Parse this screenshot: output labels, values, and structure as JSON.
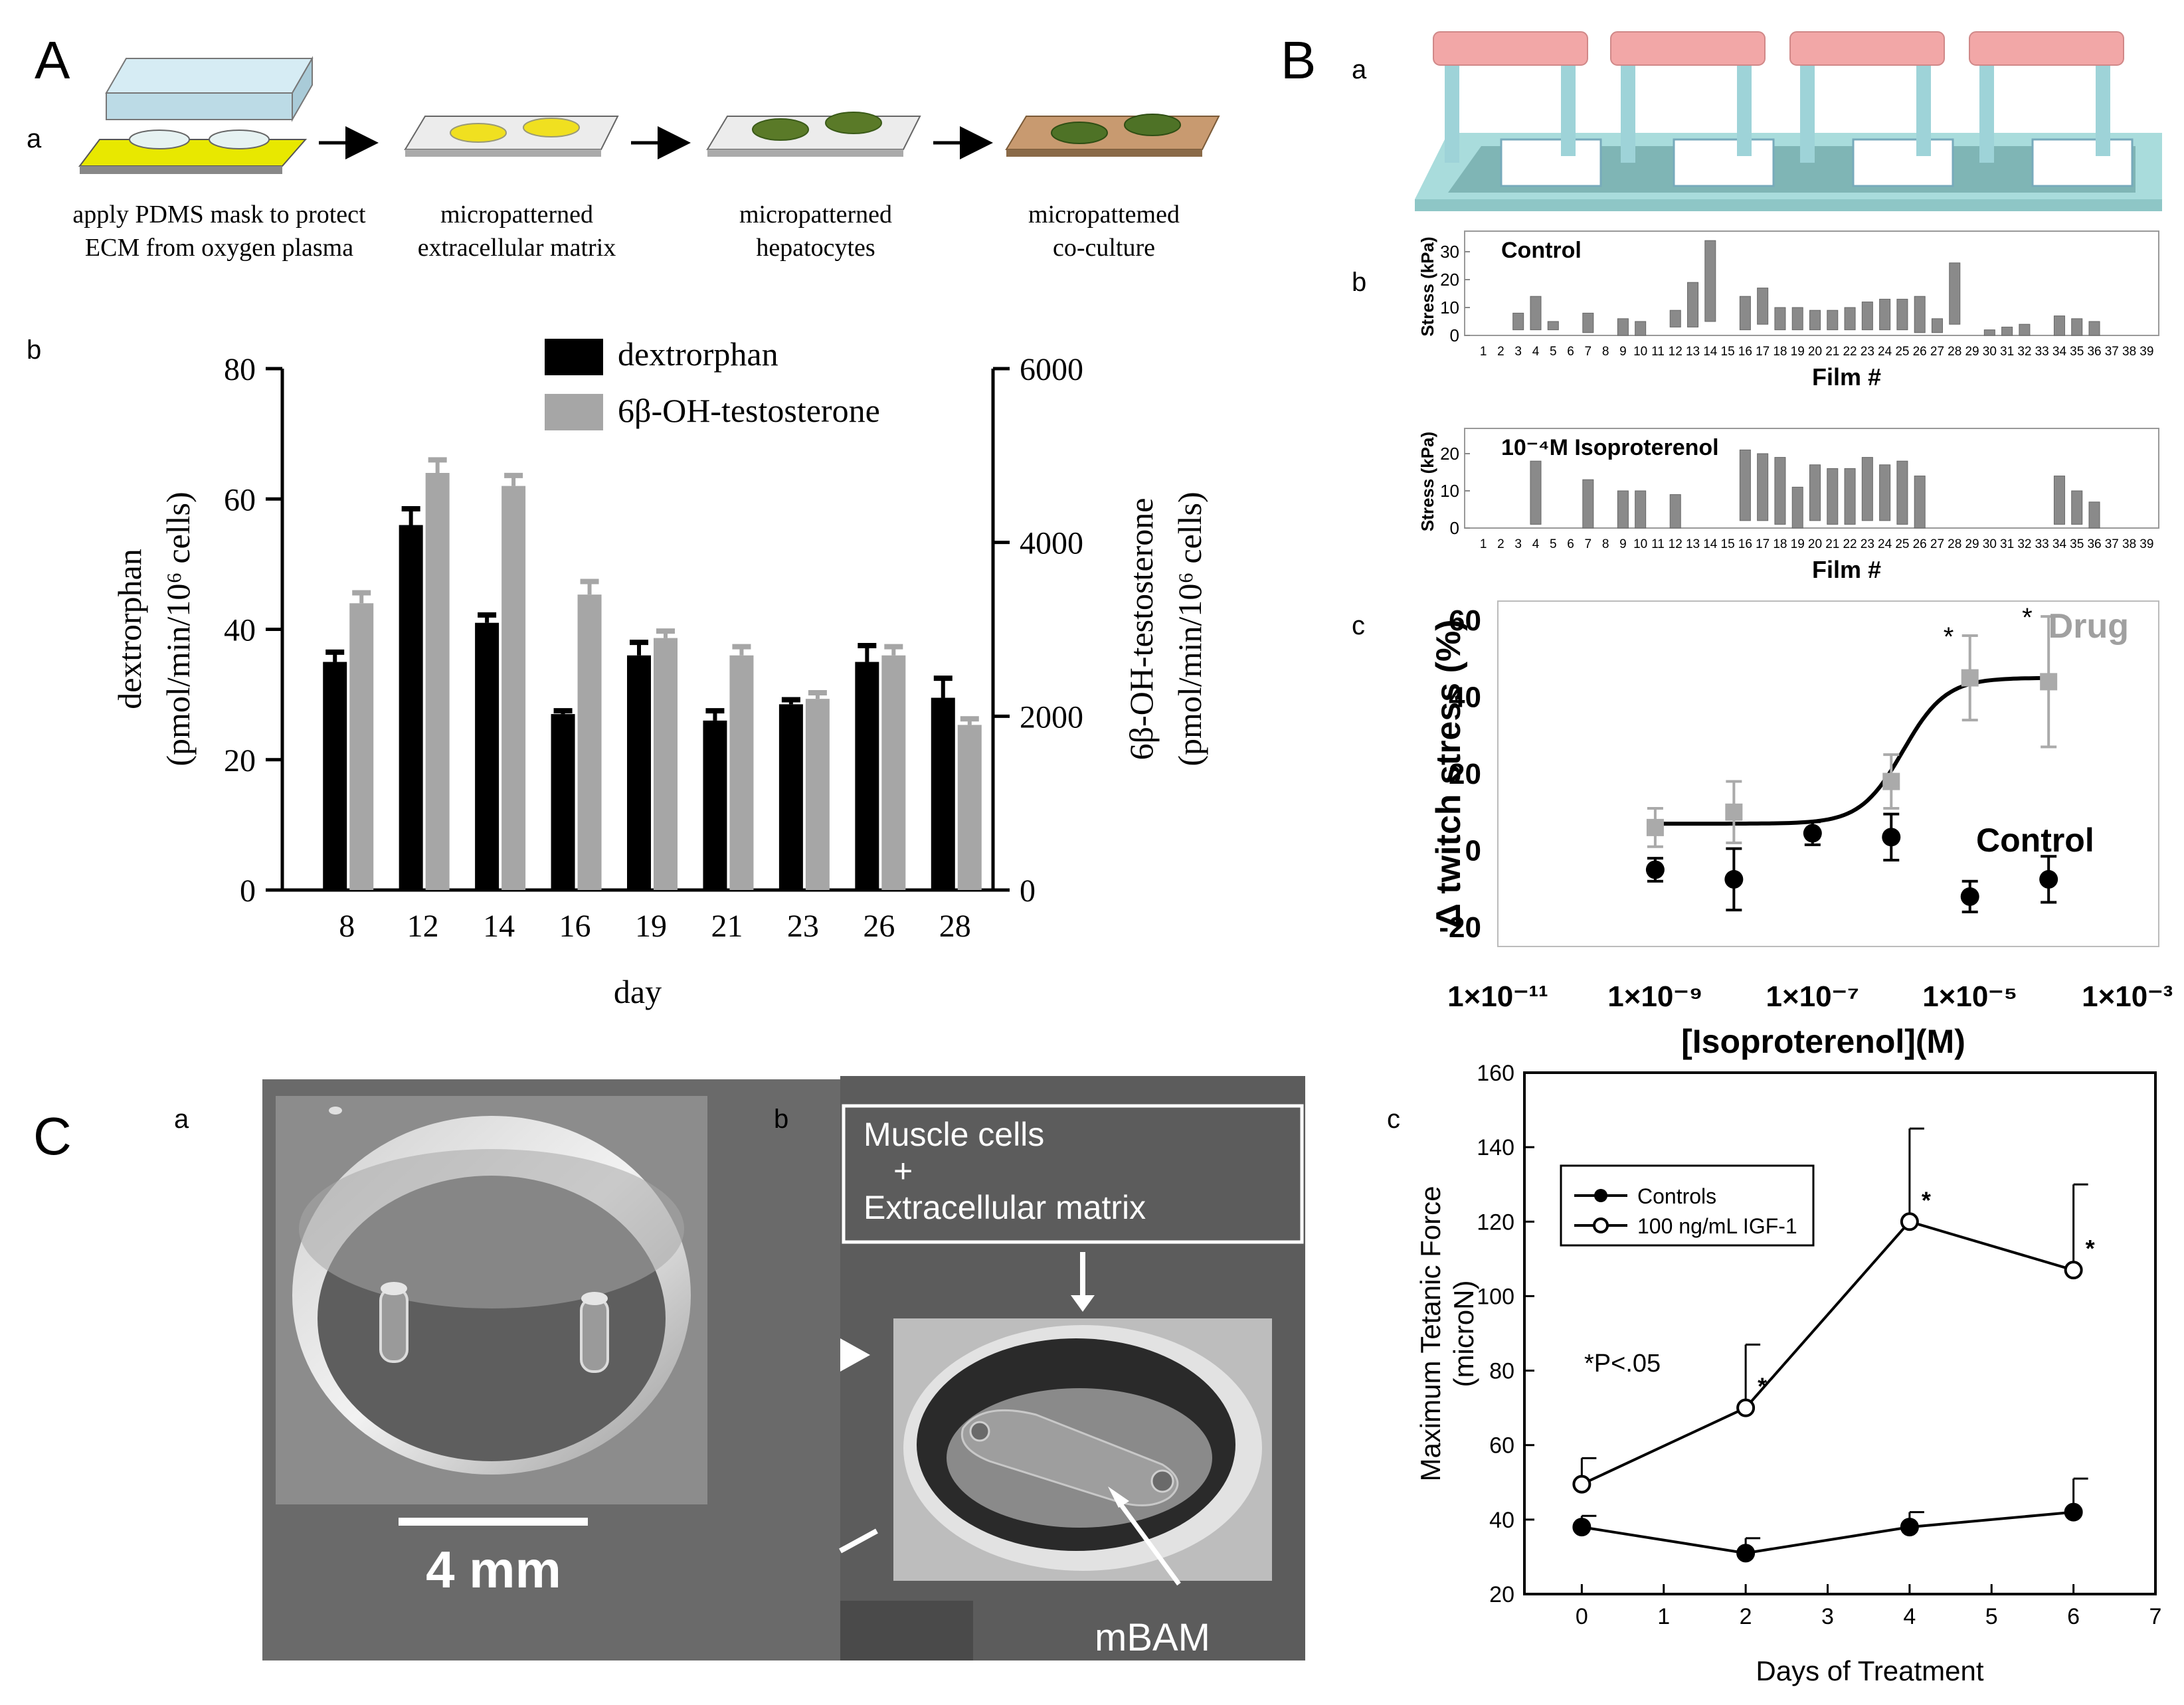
{
  "panels": {
    "A": {
      "label": "A",
      "a": {
        "label": "a",
        "steps": [
          {
            "line1": "apply PDMS mask to protect",
            "line2": "ECM from oxygen plasma"
          },
          {
            "line1": "micropatterned",
            "line2": "extracellular matrix"
          },
          {
            "line1": "micropatterned",
            "line2": "hepatocytes"
          },
          {
            "line1": "micropattemed",
            "line2": "co-culture"
          }
        ]
      },
      "b": {
        "label": "b"
      }
    },
    "B": {
      "label": "B",
      "a": {
        "label": "a"
      },
      "b": {
        "label": "b"
      },
      "c": {
        "label": "c"
      }
    },
    "C": {
      "label": "C",
      "a": {
        "label": "a",
        "scale_bar": "4 mm"
      },
      "b": {
        "label": "b",
        "box_line1": "Muscle cells",
        "box_line2": "+",
        "box_line3": "Extracellular matrix",
        "mbam": "mBAM"
      },
      "c": {
        "label": "c"
      }
    }
  },
  "chart_data": [
    {
      "id": "A-b",
      "type": "bar",
      "categories": [
        "8",
        "12",
        "14",
        "16",
        "19",
        "21",
        "23",
        "26",
        "28"
      ],
      "xlabel": "day",
      "ylabel_line1": "dextrorphan",
      "ylabel_line2": "(pmol/min/10⁶ cells)",
      "y2label_line1": "6β-OH-testosterone",
      "y2label_line2": "(pmol/min/10⁶ cells)",
      "ylim": [
        0,
        80
      ],
      "yticks": [
        "0",
        "20",
        "40",
        "60",
        "80"
      ],
      "y2lim": [
        0,
        6000
      ],
      "y2ticks": [
        "0",
        "2000",
        "4000",
        "6000"
      ],
      "series": [
        {
          "name": "dextrorphan",
          "axis": "left",
          "color": "#000000",
          "values": [
            35,
            56,
            41,
            27,
            36,
            26,
            28.5,
            35,
            29.5
          ],
          "errors": [
            1.5,
            2.5,
            1.2,
            0.5,
            2,
            1.5,
            0.7,
            2.5,
            3
          ]
        },
        {
          "name": "6β-OH-testosterone",
          "axis": "right",
          "color": "#a6a6a6",
          "values": [
            3300,
            4800,
            4650,
            3400,
            2900,
            2700,
            2200,
            2700,
            1900
          ],
          "errors": [
            120,
            150,
            120,
            150,
            80,
            100,
            70,
            100,
            70
          ]
        }
      ]
    },
    {
      "id": "B-b-control",
      "type": "bar",
      "title": "Control",
      "ylabel": "Stress (kPa)",
      "xlabel": "Film #",
      "ylim": [
        0,
        35
      ],
      "yticks": [
        "0",
        "10",
        "20",
        "30"
      ],
      "categories": [
        "1",
        "2",
        "3",
        "4",
        "5",
        "6",
        "7",
        "8",
        "9",
        "10",
        "11",
        "12",
        "13",
        "14",
        "15",
        "16",
        "17",
        "18",
        "19",
        "20",
        "21",
        "22",
        "23",
        "24",
        "25",
        "26",
        "27",
        "28",
        "29",
        "30",
        "31",
        "32",
        "33",
        "34",
        "35",
        "36",
        "37",
        "38",
        "39"
      ],
      "bars": [
        {
          "film": 3,
          "low": 2,
          "high": 8
        },
        {
          "film": 4,
          "low": 2,
          "high": 14
        },
        {
          "film": 5,
          "low": 2,
          "high": 5
        },
        {
          "film": 7,
          "low": 1,
          "high": 8
        },
        {
          "film": 9,
          "low": 0,
          "high": 6
        },
        {
          "film": 10,
          "low": 0,
          "high": 5
        },
        {
          "film": 12,
          "low": 3,
          "high": 9
        },
        {
          "film": 13,
          "low": 3,
          "high": 19
        },
        {
          "film": 14,
          "low": 5,
          "high": 34
        },
        {
          "film": 16,
          "low": 2,
          "high": 14
        },
        {
          "film": 17,
          "low": 4,
          "high": 17
        },
        {
          "film": 18,
          "low": 2,
          "high": 10
        },
        {
          "film": 19,
          "low": 2,
          "high": 10
        },
        {
          "film": 20,
          "low": 2,
          "high": 9
        },
        {
          "film": 21,
          "low": 2,
          "high": 9
        },
        {
          "film": 22,
          "low": 2,
          "high": 10
        },
        {
          "film": 23,
          "low": 2,
          "high": 12
        },
        {
          "film": 24,
          "low": 2,
          "high": 13
        },
        {
          "film": 25,
          "low": 2,
          "high": 13
        },
        {
          "film": 26,
          "low": 1,
          "high": 14
        },
        {
          "film": 27,
          "low": 1,
          "high": 6
        },
        {
          "film": 28,
          "low": 4,
          "high": 26
        },
        {
          "film": 30,
          "low": 0,
          "high": 2
        },
        {
          "film": 31,
          "low": 0,
          "high": 3
        },
        {
          "film": 32,
          "low": 0,
          "high": 4
        },
        {
          "film": 34,
          "low": 0,
          "high": 7
        },
        {
          "film": 35,
          "low": 0,
          "high": 6
        },
        {
          "film": 36,
          "low": 0,
          "high": 5
        }
      ]
    },
    {
      "id": "B-b-iso",
      "type": "bar",
      "title": "10⁻⁴M Isoproterenol",
      "ylabel": "Stress (kPa)",
      "xlabel": "Film #",
      "ylim": [
        0,
        25
      ],
      "yticks": [
        "0",
        "10",
        "20"
      ],
      "categories": [
        "1",
        "2",
        "3",
        "4",
        "5",
        "6",
        "7",
        "8",
        "9",
        "10",
        "11",
        "12",
        "13",
        "14",
        "15",
        "16",
        "17",
        "18",
        "19",
        "20",
        "21",
        "22",
        "23",
        "24",
        "25",
        "26",
        "27",
        "28",
        "29",
        "30",
        "31",
        "32",
        "33",
        "34",
        "35",
        "36",
        "37",
        "38",
        "39"
      ],
      "bars": [
        {
          "film": 4,
          "low": 1,
          "high": 18
        },
        {
          "film": 7,
          "low": 0,
          "high": 13
        },
        {
          "film": 9,
          "low": 0,
          "high": 10
        },
        {
          "film": 10,
          "low": 0,
          "high": 10
        },
        {
          "film": 12,
          "low": 0,
          "high": 9
        },
        {
          "film": 16,
          "low": 2,
          "high": 21
        },
        {
          "film": 17,
          "low": 2,
          "high": 20
        },
        {
          "film": 18,
          "low": 1,
          "high": 19
        },
        {
          "film": 19,
          "low": 0,
          "high": 11
        },
        {
          "film": 20,
          "low": 2,
          "high": 17
        },
        {
          "film": 21,
          "low": 1,
          "high": 16
        },
        {
          "film": 22,
          "low": 1,
          "high": 16
        },
        {
          "film": 23,
          "low": 2,
          "high": 19
        },
        {
          "film": 24,
          "low": 2,
          "high": 17
        },
        {
          "film": 25,
          "low": 1,
          "high": 18
        },
        {
          "film": 26,
          "low": 0,
          "high": 14
        },
        {
          "film": 34,
          "low": 1,
          "high": 14
        },
        {
          "film": 35,
          "low": 1,
          "high": 10
        },
        {
          "film": 36,
          "low": 0,
          "high": 7
        }
      ]
    },
    {
      "id": "B-c",
      "type": "scatter",
      "xlabel": "[Isoproterenol](M)",
      "ylabel": "Δ twitch stress (%)",
      "xscale": "log10",
      "xlim": [
        -11,
        -2.6
      ],
      "xticks": [
        -11,
        -9,
        -7,
        -5,
        -3
      ],
      "xtick_labels": [
        "1×10⁻¹¹",
        "1×10⁻⁹",
        "1×10⁻⁷",
        "1×10⁻⁵",
        "1×10⁻³"
      ],
      "ylim": [
        -25,
        65
      ],
      "yticks": [
        "60",
        "40",
        "20",
        "0",
        "-20"
      ],
      "annotations": {
        "drug": "Drug",
        "control": "Control",
        "star": "*"
      },
      "drug": {
        "color": "#aaaaaa",
        "points": [
          {
            "x": -9,
            "y": 6,
            "err": 5
          },
          {
            "x": -8,
            "y": 10,
            "err": 8
          },
          {
            "x": -6,
            "y": 18,
            "err": 7
          },
          {
            "x": -5,
            "y": 45,
            "err": 11,
            "sig": true
          },
          {
            "x": -4,
            "y": 44,
            "err": 17,
            "sig": true
          }
        ]
      },
      "control": {
        "color": "#000000",
        "points": [
          {
            "x": -9,
            "y": -5,
            "err": 3
          },
          {
            "x": -8,
            "y": -7.5,
            "err": 8
          },
          {
            "x": -7,
            "y": 4.5,
            "err": 3
          },
          {
            "x": -6,
            "y": 3.5,
            "err": 6
          },
          {
            "x": -5,
            "y": -12,
            "err": 4
          },
          {
            "x": -4,
            "y": -7.5,
            "err": 6
          }
        ]
      },
      "fit": {
        "base": 7,
        "top": 45,
        "ec50_log": -5.85,
        "hill": 1.6
      }
    },
    {
      "id": "C-c",
      "type": "line",
      "xlabel": "Days of Treatment",
      "ylabel_line1": "Maximum Tetanic Force",
      "ylabel_line2": "(microN)",
      "xlim": [
        -0.7,
        7
      ],
      "xticks": [
        "0",
        "1",
        "2",
        "3",
        "4",
        "5",
        "6",
        "7"
      ],
      "ylim": [
        20,
        160
      ],
      "yticks": [
        "20",
        "40",
        "60",
        "80",
        "100",
        "120",
        "140",
        "160"
      ],
      "annotation": "*P<.05",
      "star": "*",
      "series": [
        {
          "name": "Controls",
          "marker": "filled",
          "x": [
            0,
            2,
            4,
            6
          ],
          "values": [
            38,
            31,
            38,
            42
          ],
          "errors": [
            3,
            4,
            4,
            9
          ]
        },
        {
          "name": "100 ng/mL IGF-1",
          "marker": "open",
          "x": [
            0,
            2,
            4,
            6
          ],
          "values": [
            49.5,
            70,
            120,
            107
          ],
          "errors": [
            7,
            17,
            25,
            23
          ],
          "sig": [
            false,
            true,
            true,
            true
          ]
        }
      ]
    }
  ]
}
